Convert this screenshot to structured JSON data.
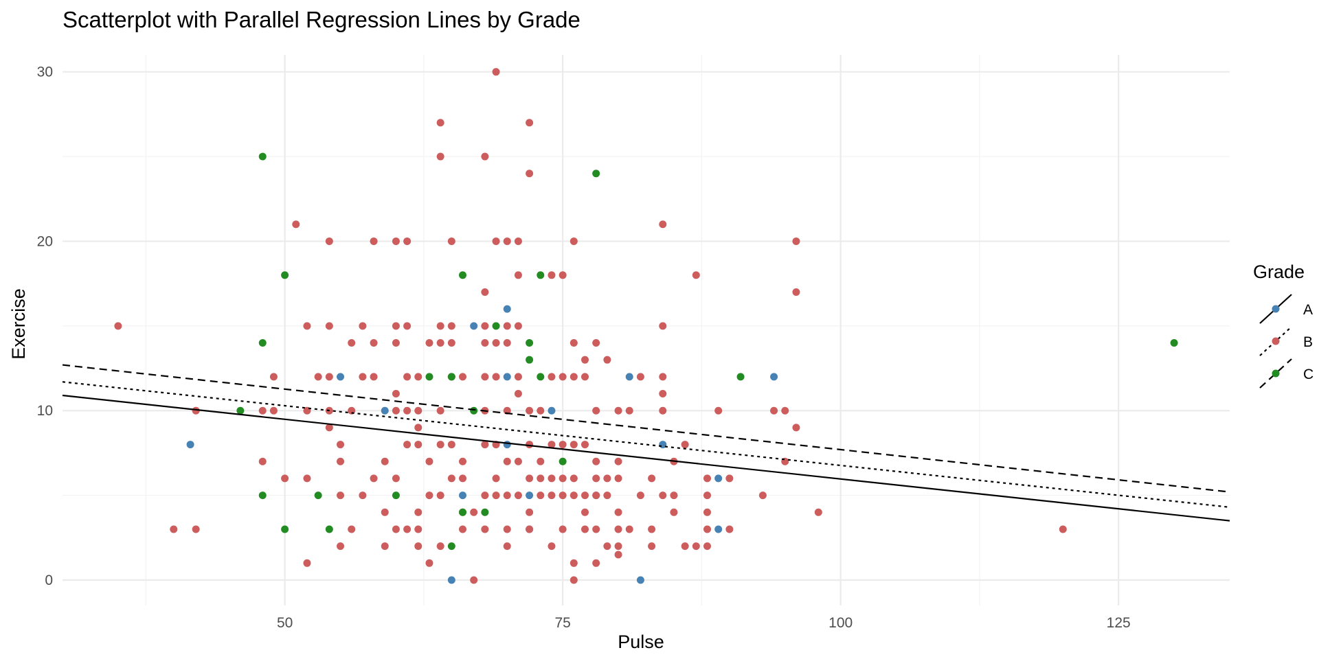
{
  "chart_data": {
    "type": "scatter",
    "title": "Scatterplot with Parallel Regression Lines by Grade",
    "xlabel": "Pulse",
    "ylabel": "Exercise",
    "xlim": [
      30,
      135
    ],
    "ylim": [
      -1.5,
      31
    ],
    "x_ticks": [
      50,
      75,
      100,
      125
    ],
    "y_ticks": [
      0,
      10,
      20,
      30
    ],
    "grid": true,
    "legend_placement": "right",
    "legend_title": "Grade",
    "series": [
      {
        "name": "A",
        "color": "#4682B4",
        "line_style": "solid",
        "line": {
          "x0": 30,
          "y0": 10.9,
          "x1": 135,
          "y1": 3.5
        },
        "points": [
          [
            41.5,
            8
          ],
          [
            55,
            12
          ],
          [
            59,
            10
          ],
          [
            65,
            0
          ],
          [
            66,
            5
          ],
          [
            67,
            15
          ],
          [
            70,
            16
          ],
          [
            70,
            12
          ],
          [
            70,
            8
          ],
          [
            72,
            5
          ],
          [
            72,
            3
          ],
          [
            74,
            10
          ],
          [
            78,
            5
          ],
          [
            81,
            12
          ],
          [
            82,
            0
          ],
          [
            84,
            8
          ],
          [
            89,
            6
          ],
          [
            89,
            3
          ],
          [
            94,
            12
          ]
        ]
      },
      {
        "name": "B",
        "color": "#CD5C5C",
        "line_style": "dotted",
        "line": {
          "x0": 30,
          "y0": 11.7,
          "x1": 135,
          "y1": 4.3
        },
        "points": [
          [
            35,
            15
          ],
          [
            40,
            3
          ],
          [
            42,
            3
          ],
          [
            42,
            10
          ],
          [
            48,
            10
          ],
          [
            48,
            7
          ],
          [
            49,
            12
          ],
          [
            49,
            10
          ],
          [
            50,
            6
          ],
          [
            51,
            21
          ],
          [
            52,
            15
          ],
          [
            52,
            10
          ],
          [
            52,
            6
          ],
          [
            52,
            1
          ],
          [
            53,
            12
          ],
          [
            54,
            20
          ],
          [
            54,
            15
          ],
          [
            54,
            12
          ],
          [
            54,
            9
          ],
          [
            54,
            10
          ],
          [
            55,
            8
          ],
          [
            55,
            7
          ],
          [
            55,
            5
          ],
          [
            55,
            2
          ],
          [
            56,
            14
          ],
          [
            56,
            10
          ],
          [
            56,
            3
          ],
          [
            57,
            15
          ],
          [
            57,
            12
          ],
          [
            57,
            5
          ],
          [
            58,
            20
          ],
          [
            58,
            14
          ],
          [
            58,
            12
          ],
          [
            58,
            6
          ],
          [
            59,
            7
          ],
          [
            59,
            4
          ],
          [
            59,
            2
          ],
          [
            60,
            20
          ],
          [
            60,
            15
          ],
          [
            60,
            14
          ],
          [
            60,
            11
          ],
          [
            60,
            10
          ],
          [
            60,
            6
          ],
          [
            60,
            3
          ],
          [
            61,
            20
          ],
          [
            61,
            15
          ],
          [
            61,
            12
          ],
          [
            61,
            10
          ],
          [
            61,
            8
          ],
          [
            61,
            3
          ],
          [
            62,
            12
          ],
          [
            62,
            10
          ],
          [
            62,
            9
          ],
          [
            62,
            8
          ],
          [
            62,
            4
          ],
          [
            62,
            3
          ],
          [
            62,
            2
          ],
          [
            63,
            14
          ],
          [
            63,
            7
          ],
          [
            63,
            5
          ],
          [
            63,
            1
          ],
          [
            64,
            27
          ],
          [
            64,
            25
          ],
          [
            64,
            15
          ],
          [
            64,
            14
          ],
          [
            64,
            10
          ],
          [
            64,
            8
          ],
          [
            64,
            5
          ],
          [
            64,
            2
          ],
          [
            65,
            20
          ],
          [
            65,
            15
          ],
          [
            65,
            14
          ],
          [
            65,
            12
          ],
          [
            65,
            8
          ],
          [
            65,
            6
          ],
          [
            66,
            12
          ],
          [
            66,
            7
          ],
          [
            66,
            6
          ],
          [
            66,
            4
          ],
          [
            66,
            3
          ],
          [
            67,
            4
          ],
          [
            67,
            0
          ],
          [
            68,
            25
          ],
          [
            68,
            17
          ],
          [
            68,
            15
          ],
          [
            68,
            14
          ],
          [
            68,
            12
          ],
          [
            68,
            10
          ],
          [
            68,
            8
          ],
          [
            68,
            5
          ],
          [
            68,
            3
          ],
          [
            69,
            30
          ],
          [
            69,
            20
          ],
          [
            69,
            14
          ],
          [
            69,
            12
          ],
          [
            69,
            8
          ],
          [
            69,
            6
          ],
          [
            69,
            5
          ],
          [
            70,
            20
          ],
          [
            70,
            15
          ],
          [
            70,
            14
          ],
          [
            70,
            10
          ],
          [
            70,
            7
          ],
          [
            70,
            5
          ],
          [
            70,
            3
          ],
          [
            70,
            2
          ],
          [
            71,
            20
          ],
          [
            71,
            18
          ],
          [
            71,
            15
          ],
          [
            71,
            12
          ],
          [
            71,
            11
          ],
          [
            71,
            7
          ],
          [
            71,
            5
          ],
          [
            72,
            27
          ],
          [
            72,
            24
          ],
          [
            72,
            10
          ],
          [
            72,
            8
          ],
          [
            72,
            6
          ],
          [
            72,
            4
          ],
          [
            72,
            3
          ],
          [
            73,
            10
          ],
          [
            73,
            7
          ],
          [
            73,
            6
          ],
          [
            73,
            5
          ],
          [
            74,
            18
          ],
          [
            74,
            12
          ],
          [
            74,
            8
          ],
          [
            74,
            6
          ],
          [
            74,
            5
          ],
          [
            74,
            2
          ],
          [
            75,
            18
          ],
          [
            75,
            12
          ],
          [
            75,
            8
          ],
          [
            75,
            6
          ],
          [
            75,
            5
          ],
          [
            75,
            3
          ],
          [
            76,
            20
          ],
          [
            76,
            14
          ],
          [
            76,
            12
          ],
          [
            76,
            8
          ],
          [
            76,
            6
          ],
          [
            76,
            5
          ],
          [
            76,
            1
          ],
          [
            76,
            0
          ],
          [
            77,
            13
          ],
          [
            77,
            12
          ],
          [
            77,
            8
          ],
          [
            77,
            5
          ],
          [
            77,
            4
          ],
          [
            77,
            3
          ],
          [
            78,
            14
          ],
          [
            78,
            10
          ],
          [
            78,
            7
          ],
          [
            78,
            6
          ],
          [
            78,
            5
          ],
          [
            78,
            3
          ],
          [
            78,
            1
          ],
          [
            79,
            13
          ],
          [
            79,
            6
          ],
          [
            79,
            5
          ],
          [
            79,
            2
          ],
          [
            80,
            10
          ],
          [
            80,
            7
          ],
          [
            80,
            6
          ],
          [
            80,
            4
          ],
          [
            80,
            3
          ],
          [
            80,
            2
          ],
          [
            80,
            1.5
          ],
          [
            81,
            10
          ],
          [
            81,
            3
          ],
          [
            82,
            12
          ],
          [
            82,
            5
          ],
          [
            83,
            6
          ],
          [
            83,
            3
          ],
          [
            83,
            2
          ],
          [
            84,
            21
          ],
          [
            84,
            15
          ],
          [
            84,
            12
          ],
          [
            84,
            11
          ],
          [
            84,
            10
          ],
          [
            84,
            5
          ],
          [
            85,
            7
          ],
          [
            85,
            5
          ],
          [
            85,
            4
          ],
          [
            86,
            8
          ],
          [
            86,
            2
          ],
          [
            87,
            18
          ],
          [
            87,
            2
          ],
          [
            88,
            6
          ],
          [
            88,
            5
          ],
          [
            88,
            4
          ],
          [
            88,
            3
          ],
          [
            88,
            2
          ],
          [
            89,
            10
          ],
          [
            90,
            6
          ],
          [
            90,
            3
          ],
          [
            93,
            5
          ],
          [
            94,
            10
          ],
          [
            95,
            10
          ],
          [
            95,
            7
          ],
          [
            96,
            20
          ],
          [
            96,
            17
          ],
          [
            96,
            9
          ],
          [
            98,
            4
          ],
          [
            120,
            3
          ]
        ]
      },
      {
        "name": "C",
        "color": "#228B22",
        "line_style": "dashed",
        "line": {
          "x0": 30,
          "y0": 12.7,
          "x1": 135,
          "y1": 5.2
        },
        "points": [
          [
            46,
            10
          ],
          [
            48,
            25
          ],
          [
            48,
            14
          ],
          [
            48,
            5
          ],
          [
            50,
            18
          ],
          [
            50,
            3
          ],
          [
            53,
            5
          ],
          [
            54,
            3
          ],
          [
            60,
            5
          ],
          [
            63,
            12
          ],
          [
            65,
            12
          ],
          [
            65,
            2
          ],
          [
            66,
            18
          ],
          [
            66,
            4
          ],
          [
            67,
            10
          ],
          [
            68,
            4
          ],
          [
            69,
            15
          ],
          [
            72,
            14
          ],
          [
            72,
            13
          ],
          [
            73,
            18
          ],
          [
            73,
            12
          ],
          [
            75,
            7
          ],
          [
            78,
            24
          ],
          [
            91,
            12
          ],
          [
            130,
            14
          ]
        ]
      }
    ]
  }
}
